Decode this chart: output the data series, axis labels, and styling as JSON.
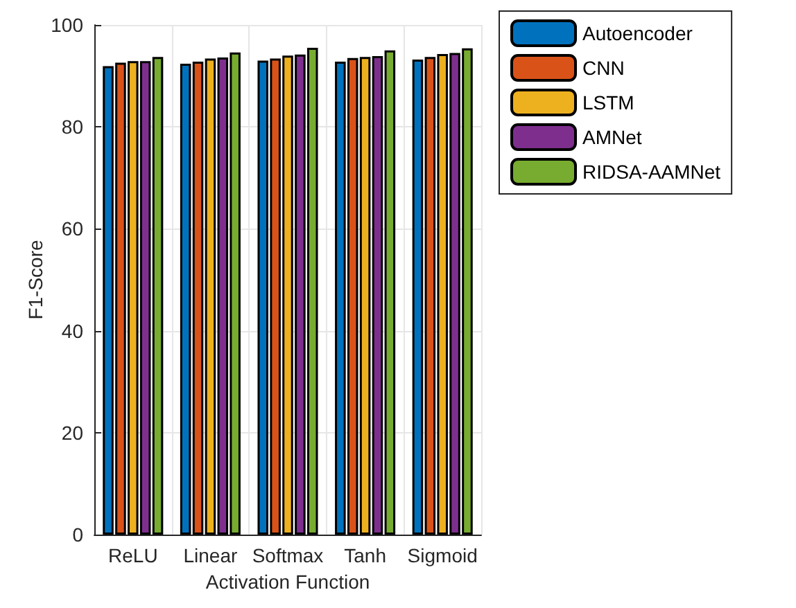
{
  "chart_data": {
    "type": "bar",
    "xlabel": "Activation Function",
    "ylabel": "F1-Score",
    "categories": [
      "ReLU",
      "Linear",
      "Softmax",
      "Tanh",
      "Sigmoid"
    ],
    "series": [
      {
        "name": "Autoencoder",
        "color": "#0072bd",
        "values": [
          91.9,
          92.4,
          93.0,
          92.8,
          93.2
        ]
      },
      {
        "name": "CNN",
        "color": "#d95319",
        "values": [
          92.6,
          92.8,
          93.4,
          93.5,
          93.7
        ]
      },
      {
        "name": "LSTM",
        "color": "#edb120",
        "values": [
          92.9,
          93.4,
          94.0,
          93.7,
          94.3
        ]
      },
      {
        "name": "AMNet",
        "color": "#7e2f8e",
        "values": [
          92.9,
          93.6,
          94.2,
          93.9,
          94.5
        ]
      },
      {
        "name": "RIDSA-AAMNet",
        "color": "#77ac30",
        "values": [
          93.7,
          94.6,
          95.5,
          95.0,
          95.4
        ]
      }
    ],
    "ylim": [
      0,
      100
    ],
    "yticks": [
      0,
      20,
      40,
      60,
      80,
      100
    ],
    "grid": true,
    "legend": "top right"
  }
}
